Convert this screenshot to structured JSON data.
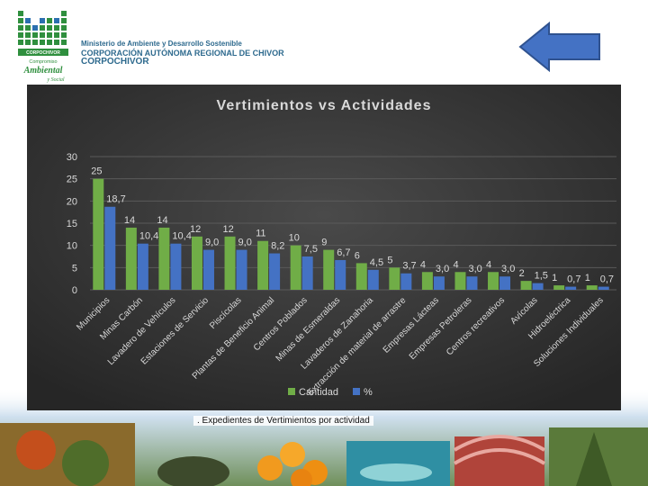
{
  "header": {
    "ministry": "Ministerio de Ambiente y Desarrollo Sostenible",
    "corporation": "CORPORACIÓN AUTÓNOMA REGIONAL DE CHIVOR",
    "short_name": "CORPOCHIVOR",
    "logo_band": "CORPOCHIVOR",
    "logo_tag1": "Compromiso",
    "logo_tag2": "Ambiental",
    "logo_tag3": "y Social"
  },
  "nav": {
    "back_icon": "arrow-left-icon",
    "color": "#4472c4"
  },
  "caption": ". Expedientes de Vertimientos por actividad",
  "colors": {
    "cantidad": "#70ad47",
    "percent": "#4472c4",
    "panel": "#3a3a3a",
    "text": "#d9d9d9"
  },
  "chart_data": {
    "type": "bar",
    "title": "Vertimientos vs Actividades",
    "categories": [
      "Municipios",
      "Minas Carbón",
      "Lavadero de Vehículos",
      "Estaciones de Servicio",
      "Piscícolas",
      "Plantas de Beneficio Animal",
      "Centros Poblados",
      "Minas de Esmeraldas",
      "Lavaderos de Zanahoria",
      "Extracción de material de arrastre",
      "Empresas Lácteas",
      "Empresas Petroleras",
      "Centros recreativos",
      "Avícolas",
      "Hidroeléctrica",
      "Soluciones Individuales"
    ],
    "series": [
      {
        "name": "Cantidad",
        "values": [
          25,
          14,
          14,
          12,
          12,
          11,
          10,
          9,
          6,
          5,
          4,
          4,
          4,
          2,
          1,
          1
        ],
        "labels": [
          "25",
          "14",
          "14",
          "12",
          "12",
          "11",
          "10",
          "9",
          "6",
          "5",
          "4",
          "4",
          "4",
          "2",
          "1",
          "1"
        ]
      },
      {
        "name": "%",
        "values": [
          18.7,
          10.4,
          10.4,
          9.0,
          9.0,
          8.2,
          7.5,
          6.7,
          4.5,
          3.7,
          3.0,
          3.0,
          3.0,
          1.5,
          0.7,
          0.7
        ],
        "labels": [
          "18,7",
          "10,4",
          "10,4",
          "9,0",
          "9,0",
          "8,2",
          "7,5",
          "6,7",
          "4,5",
          "3,7",
          "3,0",
          "3,0",
          "3,0",
          "1,5",
          "0,7",
          "0,7"
        ]
      }
    ],
    "ylim": [
      0,
      30
    ],
    "yticks": [
      "0",
      "5",
      "10",
      "15",
      "20",
      "25",
      "30"
    ],
    "grid": true,
    "legend": "bottom"
  }
}
